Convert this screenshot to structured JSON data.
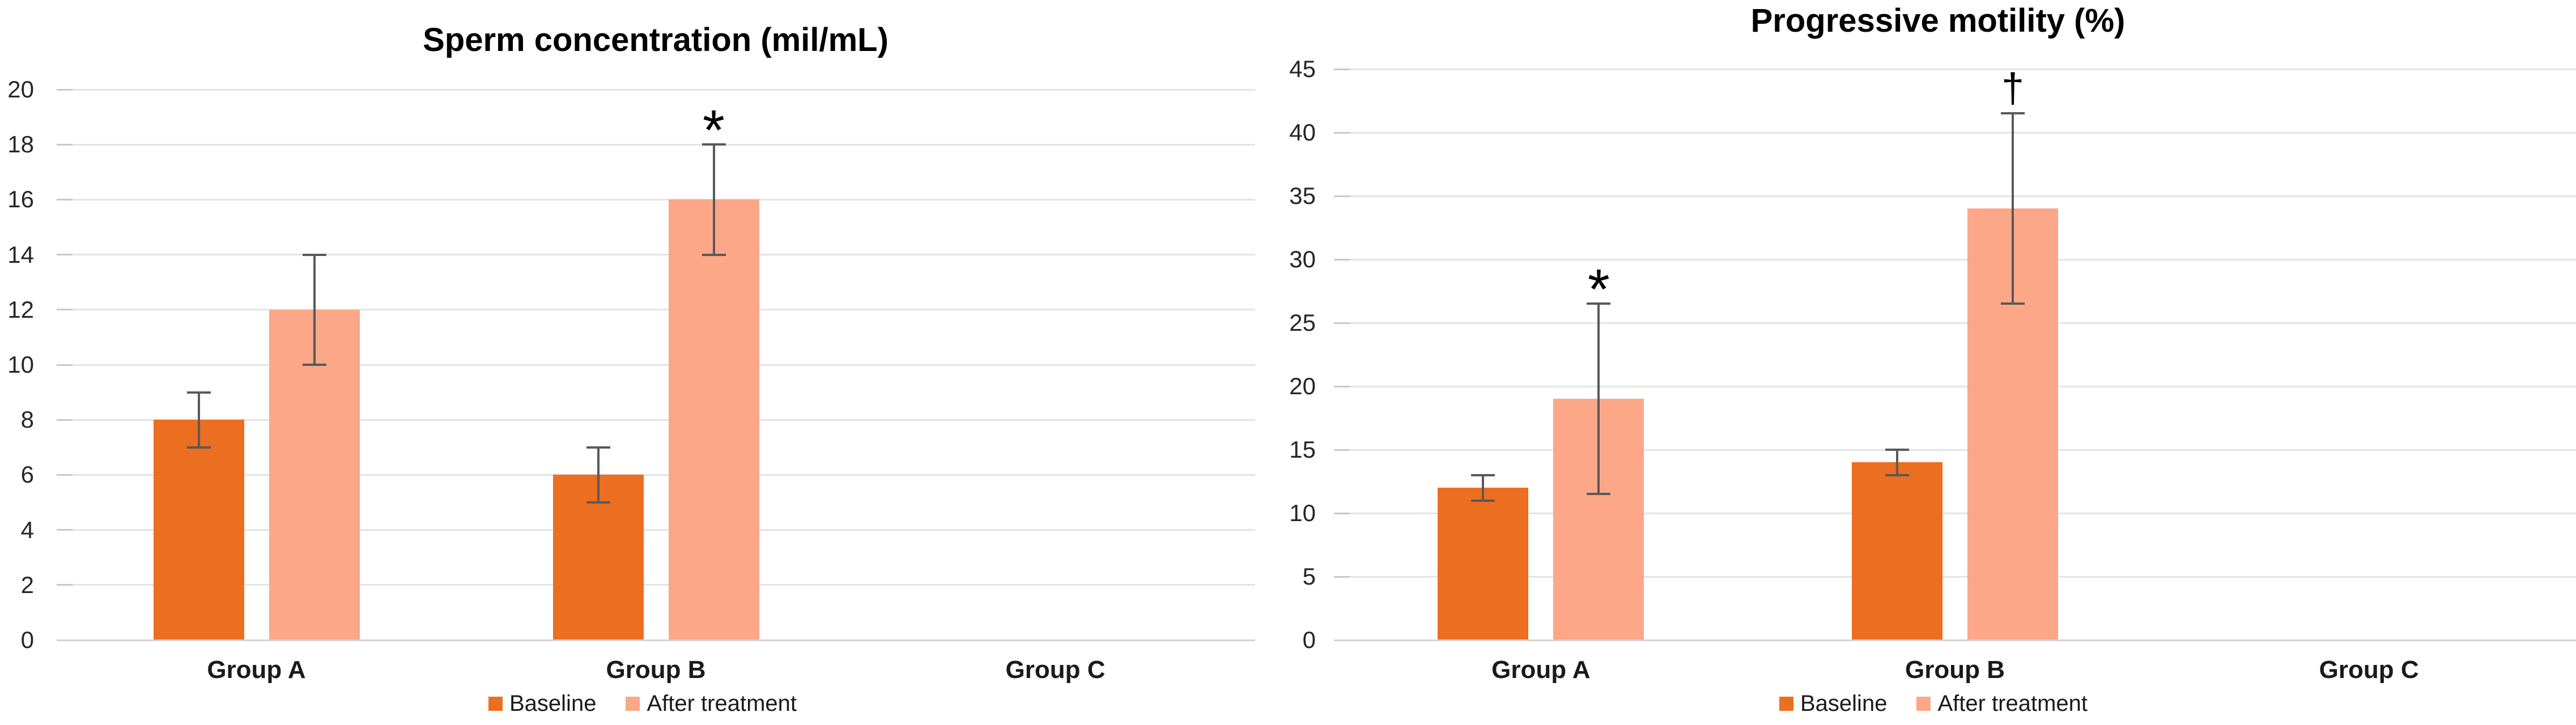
{
  "page": {
    "background": "#FFFFFF"
  },
  "colors": {
    "baseline": "#EC6E20",
    "after_treatment": "#FCA787",
    "error_bar": "#595959",
    "gridline": "#E4E4E4",
    "axis_line": "#D2D2D2",
    "text": "#262626"
  },
  "chart_data": [
    {
      "type": "bar",
      "title": "Sperm concentration (mil/mL)",
      "categories": [
        "Group A",
        "Group B",
        "Group C"
      ],
      "series": [
        {
          "name": "Baseline",
          "color": "#EC6E20",
          "values": [
            8,
            6,
            null
          ],
          "errors": [
            1,
            1,
            null
          ]
        },
        {
          "name": "After treatment",
          "color": "#FCA787",
          "values": [
            12,
            16,
            null
          ],
          "errors": [
            2,
            2,
            null
          ]
        }
      ],
      "annotations": [
        {
          "text": "*",
          "category": "Group B",
          "series": "After treatment"
        }
      ],
      "xlabel": "",
      "ylabel": "",
      "ylim": [
        0,
        20
      ],
      "ytick_step": 2,
      "grid": true,
      "legend_position": "bottom"
    },
    {
      "type": "bar",
      "title": "Progressive motility (%)",
      "categories": [
        "Group A",
        "Group B",
        "Group C"
      ],
      "series": [
        {
          "name": "Baseline",
          "color": "#EC6E20",
          "values": [
            12,
            14,
            null
          ],
          "errors": [
            1,
            1,
            null
          ]
        },
        {
          "name": "After treatment",
          "color": "#FCA787",
          "values": [
            19,
            34,
            null
          ],
          "errors": [
            7.5,
            7.5,
            null
          ]
        }
      ],
      "annotations": [
        {
          "text": "*",
          "category": "Group A",
          "series": "After treatment"
        },
        {
          "text": "†",
          "category": "Group B",
          "series": "After treatment"
        }
      ],
      "xlabel": "",
      "ylabel": "",
      "ylim": [
        0,
        45
      ],
      "ytick_step": 5,
      "grid": true,
      "legend_position": "bottom"
    }
  ]
}
